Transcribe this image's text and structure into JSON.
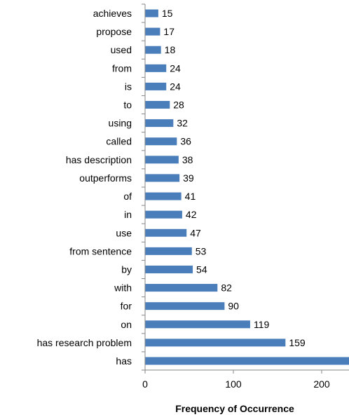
{
  "chart_data": {
    "type": "bar",
    "orientation": "horizontal",
    "title": "",
    "xlabel": "Frequency of Occurrence",
    "ylabel": "",
    "xlim": [
      0,
      250
    ],
    "xticks": [
      0,
      100,
      200
    ],
    "grid": false,
    "bar_color": "#4a7ebb",
    "categories": [
      "achieves",
      "propose",
      "used",
      "from",
      "is",
      "to",
      "using",
      "called",
      "has description",
      "outperforms",
      "of",
      "in",
      "use",
      "from sentence",
      "by",
      "with",
      "for",
      "on",
      "has research problem",
      "has"
    ],
    "values": [
      15,
      17,
      18,
      24,
      24,
      28,
      32,
      36,
      38,
      39,
      41,
      42,
      47,
      53,
      54,
      82,
      90,
      119,
      159,
      251
    ]
  }
}
